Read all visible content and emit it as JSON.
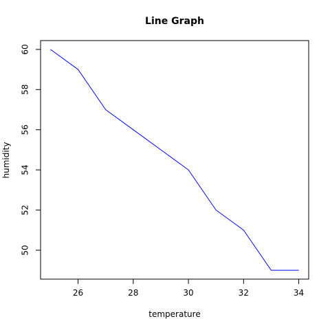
{
  "chart_data": {
    "type": "line",
    "title": "Line Graph",
    "xlabel": "temperature",
    "ylabel": "humidity",
    "x": [
      25,
      26,
      27,
      28,
      29,
      30,
      31,
      32,
      33,
      34
    ],
    "series": [
      {
        "values": [
          60,
          59,
          57,
          56,
          55,
          54,
          52,
          51,
          49,
          49
        ],
        "color": "#0000ff"
      }
    ],
    "xlim": [
      24.64,
      34.36
    ],
    "ylim": [
      48.56,
      60.44
    ],
    "xticks": [
      26,
      28,
      30,
      32,
      34
    ],
    "yticks": [
      50,
      52,
      54,
      56,
      58,
      60
    ],
    "grid": false,
    "box": true
  }
}
